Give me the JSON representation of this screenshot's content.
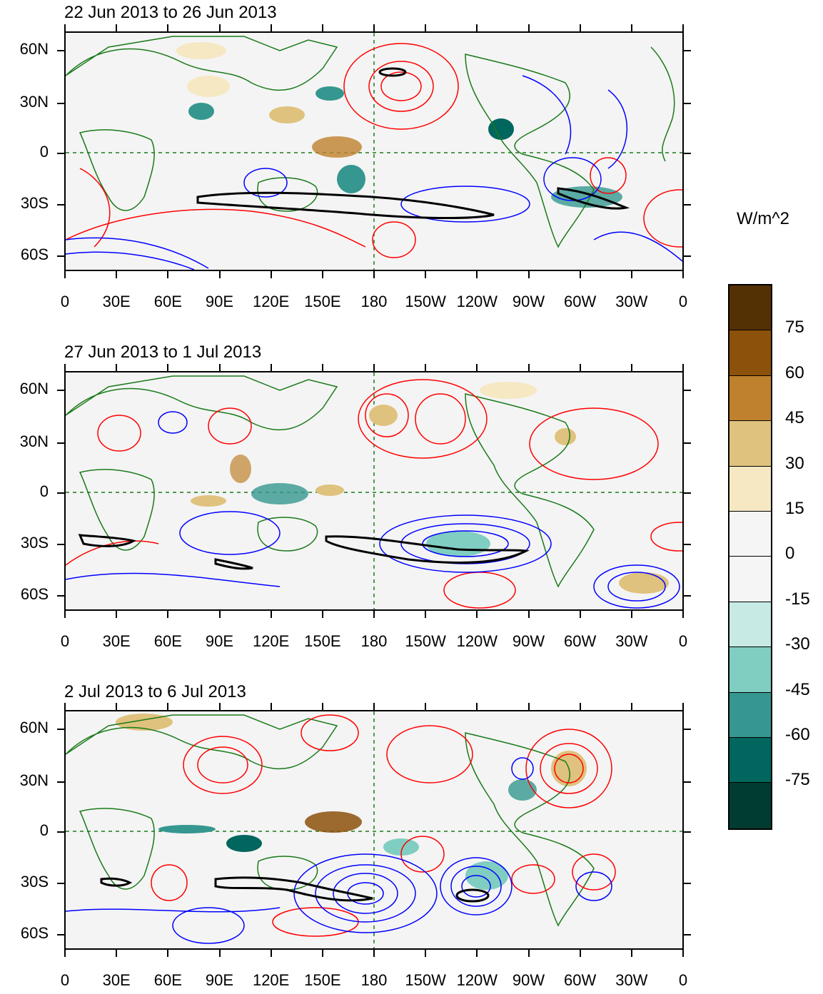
{
  "panels": [
    {
      "title": "22 Jun 2013 to 26 Jun 2013"
    },
    {
      "title": "27 Jun 2013 to 1 Jul 2013"
    },
    {
      "title": "2 Jul 2013 to 6 Jul 2013"
    }
  ],
  "lat_labels": [
    "60N",
    "30N",
    "0",
    "30S",
    "60S"
  ],
  "lon_labels": [
    "0",
    "30E",
    "60E",
    "90E",
    "120E",
    "150E",
    "180",
    "150W",
    "120W",
    "90W",
    "60W",
    "30W",
    "0"
  ],
  "colorbar": {
    "units": "W/m^2",
    "labels": [
      "75",
      "60",
      "45",
      "30",
      "15",
      "0",
      "-15",
      "-30",
      "-45",
      "-60",
      "-75"
    ],
    "colors": [
      "#543005",
      "#8c510a",
      "#bf812d",
      "#dfc27d",
      "#f6e8c3",
      "#f5f5f5",
      "#f5f5f5",
      "#c7eae5",
      "#80cdc1",
      "#35978f",
      "#01665e",
      "#003c30"
    ]
  },
  "contour_colors": {
    "positive": "#ff0000",
    "negative": "#0000ff",
    "significance": "#000000",
    "coast": "#1a7a1a"
  }
}
